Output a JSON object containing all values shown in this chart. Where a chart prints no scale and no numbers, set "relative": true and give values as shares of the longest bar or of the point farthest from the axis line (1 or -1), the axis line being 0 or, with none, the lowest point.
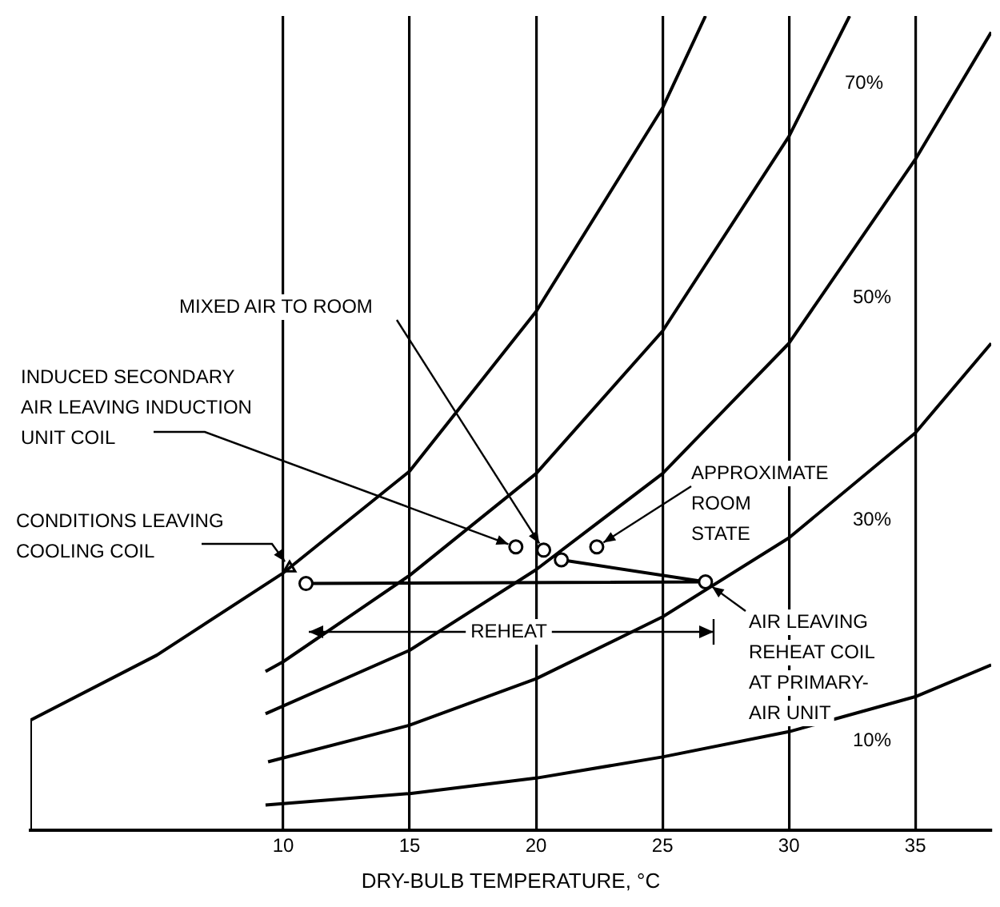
{
  "chart_data": {
    "type": "line",
    "relative": true,
    "xlabel": "DRY-BULB TEMPERATURE, °C",
    "xlim": [
      0,
      38
    ],
    "xticks": [
      10,
      15,
      20,
      25,
      30,
      35
    ],
    "grid": "x",
    "legend": false,
    "marker": "none",
    "line_style": "solid",
    "tick_labels": "x",
    "series": [
      {
        "color": "#000000",
        "x": [
          0,
          0,
          5,
          10,
          15,
          20,
          25,
          26.7
        ],
        "values": [
          0,
          0.135,
          0.215,
          0.316,
          0.441,
          0.637,
          0.887,
          1
        ]
      },
      {
        "name": "70%",
        "color": "#000000",
        "x": [
          9.3,
          10,
          15,
          20,
          25,
          30,
          32.4
        ],
        "values": [
          0.195,
          0.207,
          0.313,
          0.438,
          0.613,
          0.852,
          1
        ]
      },
      {
        "name": "50%",
        "color": "#000000",
        "x": [
          9.3,
          15,
          20,
          25,
          30,
          35,
          38
        ],
        "values": [
          0.143,
          0.221,
          0.32,
          0.438,
          0.598,
          0.824,
          0.98
        ]
      },
      {
        "name": "30%",
        "color": "#000000",
        "x": [
          9.4,
          15,
          20,
          25,
          30,
          35,
          38
        ],
        "values": [
          0.084,
          0.129,
          0.186,
          0.262,
          0.359,
          0.488,
          0.598
        ]
      },
      {
        "name": "10%",
        "color": "#000000",
        "x": [
          9.3,
          15,
          20,
          25,
          30,
          35,
          38
        ],
        "values": [
          0.031,
          0.045,
          0.064,
          0.09,
          0.121,
          0.164,
          0.203
        ]
      },
      {
        "type": "line",
        "color": "#000000",
        "marker": "circle",
        "x": [
          10.9,
          26.7,
          21.0
        ],
        "values": [
          0.303,
          0.305,
          0.332
        ]
      },
      {
        "type": "scatter",
        "color": "#000000",
        "marker": "circle",
        "x": [
          19.2,
          20.3,
          22.4
        ],
        "values": [
          0.348,
          0.344,
          0.348
        ]
      },
      {
        "type": "scatter",
        "color": "#000000",
        "marker": "triangle",
        "x": [
          10.25
        ],
        "values": [
          0.322
        ]
      }
    ],
    "annotations": [
      {
        "text": "MIXED AIR TO ROOM",
        "x": 20.3,
        "y": 0.344
      },
      {
        "text": "INDUCED SECONDARY\nAIR LEAVING INDUCTION\nUNIT COIL",
        "x": 19.2,
        "y": 0.348
      },
      {
        "text": "APPROXIMATE\nROOM\nSTATE",
        "x": 22.4,
        "y": 0.348
      },
      {
        "text": "CONDITIONS LEAVING\nCOOLING COIL",
        "x": 10.25,
        "y": 0.322
      },
      {
        "text": "AIR LEAVING\nREHEAT COIL\nAT PRIMARY-\nAIR UNIT",
        "x": 26.7,
        "y": 0.305
      },
      "REHEAT"
    ]
  }
}
